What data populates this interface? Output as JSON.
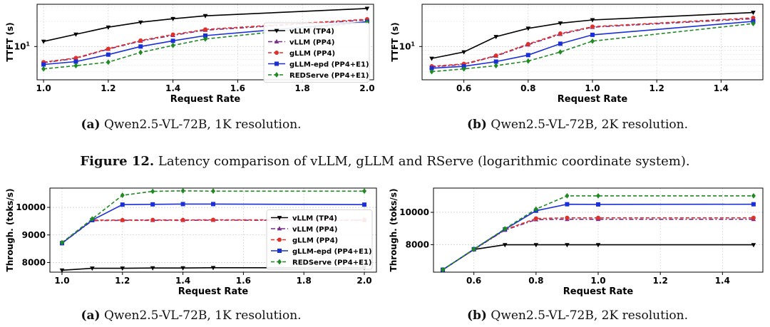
{
  "figure_caption": {
    "label": "Figure 12.",
    "text": " Latency comparison of vLLM, gLLM and RServe (logarithmic coordinate system)."
  },
  "legend_names": [
    "vLLM (TP4)",
    "vLLM (PP4)",
    "gLLM (PP4)",
    "gLLM-epd (PP4+E1)",
    "REDServe (PP4+E1)"
  ],
  "colors": {
    "vLLM (TP4)": "#000000",
    "vLLM (PP4)": "#7a2a8a",
    "gLLM (PP4)": "#e0302a",
    "gLLM-epd (PP4+E1)": "#1a2fd6",
    "REDServe (PP4+E1)": "#1f8a22"
  },
  "chart_data": [
    {
      "id": "ttft-1k",
      "type": "line",
      "caption_label": "(a)",
      "caption_text": " Qwen2.5-VL-72B, 1K resolution.",
      "xlabel": "Request Rate",
      "ylabel": "TTFT (s)",
      "xlim": [
        0.98,
        2.02
      ],
      "ylim": [
        4.0,
        32
      ],
      "yscale": "log",
      "xticks": [
        1.0,
        1.2,
        1.4,
        1.6,
        1.8,
        2.0
      ],
      "xtick_labels": [
        "1.0",
        "1.2",
        "1.4",
        "1.6",
        "1.8",
        "2.0"
      ],
      "yticks": [
        10
      ],
      "ytick_labels": [
        "10"
      ],
      "legend": "right",
      "series": [
        {
          "name": "vLLM (TP4)",
          "x": [
            1.0,
            1.1,
            1.2,
            1.3,
            1.4,
            1.5,
            2.0
          ],
          "y": [
            11.5,
            14.0,
            17.0,
            19.5,
            21.5,
            23.3,
            28.5
          ]
        },
        {
          "name": "vLLM (PP4)",
          "x": [
            1.0,
            1.1,
            1.2,
            1.3,
            1.4,
            1.5,
            2.0
          ],
          "y": [
            6.4,
            7.2,
            9.3,
            11.6,
            13.6,
            15.7,
            20.8
          ]
        },
        {
          "name": "gLLM (PP4)",
          "x": [
            1.0,
            1.1,
            1.2,
            1.3,
            1.4,
            1.5,
            2.0
          ],
          "y": [
            6.5,
            7.3,
            9.4,
            11.8,
            13.9,
            16.0,
            21.2
          ]
        },
        {
          "name": "gLLM-epd (PP4+E1)",
          "x": [
            1.0,
            1.1,
            1.2,
            1.3,
            1.4,
            1.5,
            2.0
          ],
          "y": [
            6.1,
            6.6,
            8.0,
            10.0,
            11.7,
            13.5,
            19.8
          ]
        },
        {
          "name": "REDServe (PP4+E1)",
          "x": [
            1.0,
            1.1,
            1.2,
            1.3,
            1.4,
            1.5,
            2.0
          ],
          "y": [
            5.4,
            5.9,
            6.5,
            8.5,
            10.3,
            12.3,
            19.5
          ]
        }
      ]
    },
    {
      "id": "ttft-2k",
      "type": "line",
      "caption_label": "(b)",
      "caption_text": " Qwen2.5-VL-72B, 2K resolution.",
      "xlabel": "Request Rate",
      "ylabel": "TTFT (s)",
      "xlim": [
        0.47,
        1.53
      ],
      "ylim": [
        4.0,
        32
      ],
      "yscale": "log",
      "xticks": [
        0.6,
        0.8,
        1.0,
        1.2,
        1.4
      ],
      "xtick_labels": [
        "0.6",
        "0.8",
        "1.0",
        "1.2",
        "1.4"
      ],
      "yticks": [
        10
      ],
      "ytick_labels": [
        "10"
      ],
      "legend": "none",
      "series": [
        {
          "name": "vLLM (TP4)",
          "x": [
            0.5,
            0.6,
            0.7,
            0.8,
            0.9,
            1.0,
            1.5
          ],
          "y": [
            7.2,
            8.6,
            13.1,
            16.5,
            19.0,
            20.8,
            25.5
          ]
        },
        {
          "name": "vLLM (PP4)",
          "x": [
            0.5,
            0.6,
            0.7,
            0.8,
            0.9,
            1.0,
            1.5
          ],
          "y": [
            5.7,
            6.1,
            7.7,
            10.5,
            14.0,
            17.0,
            21.5
          ]
        },
        {
          "name": "gLLM (PP4)",
          "x": [
            0.5,
            0.6,
            0.7,
            0.8,
            0.9,
            1.0,
            1.5
          ],
          "y": [
            5.8,
            6.2,
            7.8,
            10.7,
            14.3,
            17.3,
            22.0
          ]
        },
        {
          "name": "gLLM-epd (PP4+E1)",
          "x": [
            0.5,
            0.6,
            0.7,
            0.8,
            0.9,
            1.0,
            1.5
          ],
          "y": [
            5.5,
            5.8,
            6.6,
            7.9,
            10.8,
            13.8,
            20.0
          ]
        },
        {
          "name": "REDServe (PP4+E1)",
          "x": [
            0.5,
            0.6,
            0.7,
            0.8,
            0.9,
            1.0,
            1.5
          ],
          "y": [
            5.0,
            5.4,
            5.9,
            6.7,
            8.6,
            11.6,
            18.8
          ]
        }
      ]
    },
    {
      "id": "throughput-1k",
      "type": "line",
      "caption_label": "(a)",
      "caption_text": " Qwen2.5-VL-72B, 1K resolution.",
      "xlabel": "Request Rate",
      "ylabel": "Through. (toks/s)",
      "xlim": [
        0.96,
        2.04
      ],
      "ylim": [
        7650,
        10700
      ],
      "yscale": "linear",
      "xticks": [
        1.0,
        1.2,
        1.4,
        1.6,
        1.8,
        2.0
      ],
      "xtick_labels": [
        "1.0",
        "1.2",
        "1.4",
        "1.6",
        "1.8",
        "2.0"
      ],
      "yticks": [
        8000,
        9000,
        10000
      ],
      "ytick_labels": [
        "8000",
        "9000",
        "10000"
      ],
      "legend": "right",
      "series": [
        {
          "name": "vLLM (TP4)",
          "x": [
            1.0,
            1.1,
            1.2,
            1.3,
            1.4,
            1.5,
            2.0
          ],
          "y": [
            7720,
            7790,
            7790,
            7800,
            7800,
            7810,
            7810
          ]
        },
        {
          "name": "vLLM (PP4)",
          "x": [
            1.0,
            1.1,
            1.2,
            1.3,
            1.4,
            1.5,
            2.0
          ],
          "y": [
            8700,
            9520,
            9530,
            9530,
            9530,
            9535,
            9530
          ]
        },
        {
          "name": "gLLM (PP4)",
          "x": [
            1.0,
            1.1,
            1.2,
            1.3,
            1.4,
            1.5,
            2.0
          ],
          "y": [
            8720,
            9540,
            9540,
            9545,
            9545,
            9550,
            9545
          ]
        },
        {
          "name": "gLLM-epd (PP4+E1)",
          "x": [
            1.0,
            1.1,
            1.2,
            1.3,
            1.4,
            1.5,
            2.0
          ],
          "y": [
            8700,
            9540,
            10100,
            10110,
            10120,
            10120,
            10100
          ]
        },
        {
          "name": "REDServe (PP4+E1)",
          "x": [
            1.0,
            1.1,
            1.2,
            1.3,
            1.4,
            1.5,
            2.0
          ],
          "y": [
            8720,
            9580,
            10440,
            10580,
            10600,
            10590,
            10590
          ]
        }
      ]
    },
    {
      "id": "throughput-2k",
      "type": "line",
      "caption_label": "(b)",
      "caption_text": " Qwen2.5-VL-72B, 2K resolution.",
      "xlabel": "Request Rate",
      "ylabel": "Through. (toks/s)",
      "xlim": [
        0.47,
        1.53
      ],
      "ylim": [
        6300,
        11500
      ],
      "yscale": "linear",
      "xticks": [
        0.6,
        0.8,
        1.0,
        1.2,
        1.4
      ],
      "xtick_labels": [
        "0.6",
        "0.8",
        "1.0",
        "1.2",
        "1.4"
      ],
      "yticks": [
        8000,
        10000
      ],
      "ytick_labels": [
        "8000",
        "10000"
      ],
      "legend": "none",
      "series": [
        {
          "name": "vLLM (TP4)",
          "x": [
            0.5,
            0.6,
            0.7,
            0.8,
            0.9,
            1.0,
            1.5
          ],
          "y": [
            6450,
            7700,
            7990,
            7990,
            7990,
            7990,
            7990
          ]
        },
        {
          "name": "vLLM (PP4)",
          "x": [
            0.5,
            0.6,
            0.7,
            0.8,
            0.9,
            1.0,
            1.5
          ],
          "y": [
            6450,
            7700,
            8900,
            9550,
            9570,
            9570,
            9570
          ]
        },
        {
          "name": "gLLM (PP4)",
          "x": [
            0.5,
            0.6,
            0.7,
            0.8,
            0.9,
            1.0,
            1.5
          ],
          "y": [
            6450,
            7700,
            8920,
            9620,
            9660,
            9660,
            9660
          ]
        },
        {
          "name": "gLLM-epd (PP4+E1)",
          "x": [
            0.5,
            0.6,
            0.7,
            0.8,
            0.9,
            1.0,
            1.5
          ],
          "y": [
            6450,
            7720,
            8950,
            10100,
            10500,
            10490,
            10500
          ]
        },
        {
          "name": "REDServe (PP4+E1)",
          "x": [
            0.5,
            0.6,
            0.7,
            0.8,
            0.9,
            1.0,
            1.5
          ],
          "y": [
            6450,
            7720,
            8980,
            10200,
            11020,
            11020,
            11020
          ]
        }
      ]
    }
  ]
}
